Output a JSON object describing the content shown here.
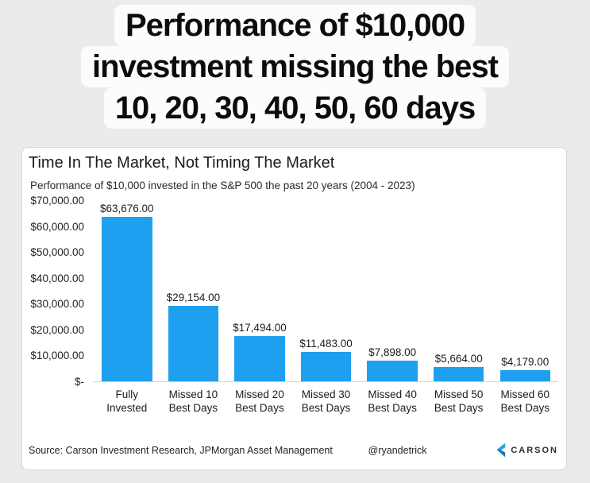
{
  "page_title": {
    "line1": "Performance of $10,000",
    "line2": "investment missing the best",
    "line3": "10, 20, 30, 40, 50, 60 days"
  },
  "card": {
    "title": "Time In The Market, Not Timing The Market",
    "subtitle": "Performance of $10,000 invested in the S&P 500 the past 20 years (2004 - 2023)"
  },
  "chart_data": {
    "type": "bar",
    "title": "Time In The Market, Not Timing The Market",
    "subtitle": "Performance of $10,000 invested in the S&P 500 the past 20 years (2004 - 2023)",
    "categories": [
      "Fully\nInvested",
      "Missed 10\nBest Days",
      "Missed 20\nBest Days",
      "Missed 30\nBest Days",
      "Missed 40\nBest Days",
      "Missed 50\nBest Days",
      "Missed 60\nBest Days"
    ],
    "values": [
      63676,
      29154,
      17494,
      11483,
      7898,
      5664,
      4179
    ],
    "value_labels": [
      "$63,676.00",
      "$29,154.00",
      "$17,494.00",
      "$11,483.00",
      "$7,898.00",
      "$5,664.00",
      "$4,179.00"
    ],
    "y_ticks": [
      "$70,000.00",
      "$60,000.00",
      "$50,000.00",
      "$40,000.00",
      "$30,000.00",
      "$20,000.00",
      "$10,000.00",
      "$-"
    ],
    "ylim": [
      0,
      70000
    ],
    "xlabel": "",
    "ylabel": "",
    "grid": false,
    "legend": false,
    "bar_color": "#1f9ff0"
  },
  "footer": {
    "source": "Source: Carson Investment Research, JPMorgan Asset Management",
    "handle": "@ryandetrick",
    "brand": "CARSON",
    "logo_light": "#2aa9e0",
    "logo_dark": "#1b75bc"
  },
  "colors": {
    "background": "#ebebeb",
    "card_background": "#ffffff",
    "card_border": "#d6d6d6",
    "bar": "#1f9ff0",
    "axis_line": "#d5d5d5",
    "title_highlight": "#fcfcfc"
  }
}
